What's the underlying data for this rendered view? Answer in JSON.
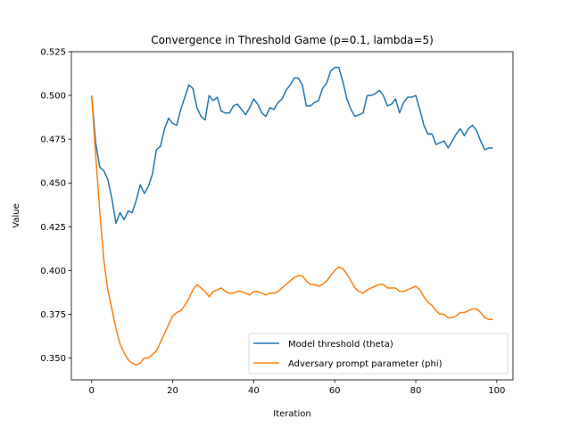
{
  "chart_data": {
    "type": "line",
    "title": "Convergence in Threshold Game (p=0.1, lambda=5)",
    "xlabel": "Iteration",
    "ylabel": "Value",
    "xlim": [
      -5,
      104
    ],
    "ylim": [
      0.3375,
      0.525
    ],
    "xticks": [
      0,
      20,
      40,
      60,
      80,
      100
    ],
    "yticks": [
      0.35,
      0.375,
      0.4,
      0.425,
      0.45,
      0.475,
      0.5,
      0.525
    ],
    "ytick_labels": [
      "0.350",
      "0.375",
      "0.400",
      "0.425",
      "0.450",
      "0.475",
      "0.500",
      "0.525"
    ],
    "grid": false,
    "legend_position": "lower right",
    "x": [
      0,
      1,
      2,
      3,
      4,
      5,
      6,
      7,
      8,
      9,
      10,
      11,
      12,
      13,
      14,
      15,
      16,
      17,
      18,
      19,
      20,
      21,
      22,
      23,
      24,
      25,
      26,
      27,
      28,
      29,
      30,
      31,
      32,
      33,
      34,
      35,
      36,
      37,
      38,
      39,
      40,
      41,
      42,
      43,
      44,
      45,
      46,
      47,
      48,
      49,
      50,
      51,
      52,
      53,
      54,
      55,
      56,
      57,
      58,
      59,
      60,
      61,
      62,
      63,
      64,
      65,
      66,
      67,
      68,
      69,
      70,
      71,
      72,
      73,
      74,
      75,
      76,
      77,
      78,
      79,
      80,
      81,
      82,
      83,
      84,
      85,
      86,
      87,
      88,
      89,
      90,
      91,
      92,
      93,
      94,
      95,
      96,
      97,
      98,
      99
    ],
    "series": [
      {
        "name": "Model threshold (theta)",
        "color": "#1f77b4",
        "values": [
          0.5,
          0.473,
          0.459,
          0.457,
          0.452,
          0.441,
          0.427,
          0.433,
          0.429,
          0.434,
          0.433,
          0.44,
          0.449,
          0.444,
          0.448,
          0.455,
          0.469,
          0.471,
          0.481,
          0.487,
          0.484,
          0.483,
          0.492,
          0.499,
          0.506,
          0.504,
          0.493,
          0.488,
          0.486,
          0.5,
          0.497,
          0.499,
          0.491,
          0.49,
          0.49,
          0.494,
          0.495,
          0.492,
          0.489,
          0.493,
          0.498,
          0.495,
          0.49,
          0.488,
          0.493,
          0.492,
          0.496,
          0.498,
          0.503,
          0.506,
          0.51,
          0.51,
          0.506,
          0.494,
          0.494,
          0.496,
          0.497,
          0.504,
          0.507,
          0.514,
          0.516,
          0.516,
          0.508,
          0.498,
          0.492,
          0.488,
          0.489,
          0.49,
          0.5,
          0.5,
          0.501,
          0.503,
          0.5,
          0.494,
          0.495,
          0.498,
          0.49,
          0.496,
          0.499,
          0.499,
          0.5,
          0.492,
          0.483,
          0.478,
          0.478,
          0.472,
          0.473,
          0.474,
          0.47,
          0.474,
          0.478,
          0.481,
          0.477,
          0.481,
          0.483,
          0.48,
          0.474,
          0.469,
          0.47,
          0.47
        ]
      },
      {
        "name": "Adversary prompt parameter (phi)",
        "color": "#ff7f0e",
        "values": [
          0.5,
          0.466,
          0.434,
          0.406,
          0.389,
          0.378,
          0.367,
          0.358,
          0.353,
          0.349,
          0.347,
          0.346,
          0.347,
          0.35,
          0.35,
          0.352,
          0.354,
          0.359,
          0.364,
          0.369,
          0.374,
          0.376,
          0.377,
          0.38,
          0.384,
          0.389,
          0.392,
          0.39,
          0.388,
          0.385,
          0.388,
          0.389,
          0.39,
          0.388,
          0.387,
          0.387,
          0.388,
          0.388,
          0.387,
          0.386,
          0.388,
          0.388,
          0.387,
          0.386,
          0.387,
          0.387,
          0.388,
          0.39,
          0.392,
          0.394,
          0.396,
          0.397,
          0.397,
          0.394,
          0.392,
          0.392,
          0.391,
          0.392,
          0.394,
          0.397,
          0.4,
          0.402,
          0.401,
          0.398,
          0.394,
          0.39,
          0.388,
          0.387,
          0.389,
          0.39,
          0.391,
          0.392,
          0.392,
          0.39,
          0.39,
          0.39,
          0.388,
          0.388,
          0.389,
          0.39,
          0.391,
          0.389,
          0.385,
          0.382,
          0.38,
          0.377,
          0.375,
          0.375,
          0.373,
          0.373,
          0.374,
          0.376,
          0.376,
          0.377,
          0.378,
          0.378,
          0.376,
          0.373,
          0.372,
          0.372
        ]
      }
    ]
  }
}
